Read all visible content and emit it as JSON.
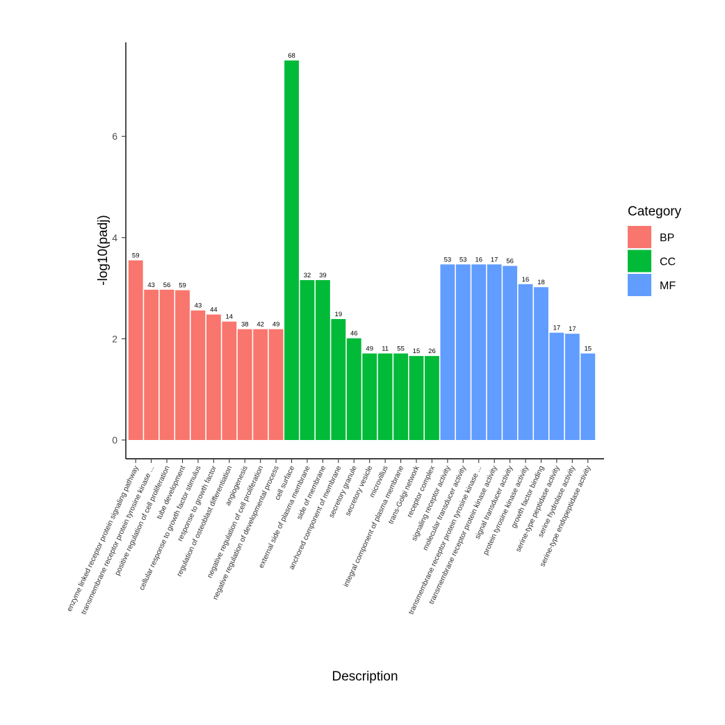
{
  "chart_data": {
    "type": "bar",
    "xlabel": "Description",
    "ylabel": "-log10(padj)",
    "ylim": [
      -0.33,
      7.75
    ],
    "yticks": [
      0,
      2,
      4,
      6
    ],
    "grid": false,
    "legend": {
      "title": "Category",
      "placement": "right",
      "entries": [
        {
          "name": "BP",
          "color": "#F8766D"
        },
        {
          "name": "CC",
          "color": "#00BA38"
        },
        {
          "name": "MF",
          "color": "#619CFF"
        }
      ]
    },
    "categories": [
      "enzyme linked receptor protein signaling pathway",
      "transmembrane receptor protein tyrosine kinase ...",
      "positive regulation of cell proliferation",
      "tube development",
      "cellular response to growth factor stimulus",
      "response to growth factor",
      "regulation of osteoblast differentiation",
      "angiogenesis",
      "negative regulation of cell proliferation",
      "negative regulation of developmental process",
      "cell surface",
      "external side of plasma membrane",
      "side of membrane",
      "anchored component of membrane",
      "secretory granule",
      "secretory vesicle",
      "microvillus",
      "integral component of plasma membrane",
      "trans-Golgi network",
      "receptor complex",
      "signaling receptor activity",
      "molecular transducer activity",
      "transmembrane receptor protein tyrosine kinase ...",
      "transmembrane receptor protein kinase activity",
      "signal transducer activity",
      "protein tyrosine kinase activity",
      "growth factor binding",
      "serine-type peptidase activity",
      "serine hydrolase activity",
      "serine-type endopeptidase activity"
    ],
    "groups": [
      "BP",
      "BP",
      "BP",
      "BP",
      "BP",
      "BP",
      "BP",
      "BP",
      "BP",
      "BP",
      "CC",
      "CC",
      "CC",
      "CC",
      "CC",
      "CC",
      "CC",
      "CC",
      "CC",
      "CC",
      "MF",
      "MF",
      "MF",
      "MF",
      "MF",
      "MF",
      "MF",
      "MF",
      "MF",
      "MF"
    ],
    "values": [
      3.55,
      2.97,
      2.97,
      2.96,
      2.56,
      2.48,
      2.34,
      2.19,
      2.19,
      2.19,
      7.5,
      3.16,
      3.16,
      2.39,
      2.01,
      1.71,
      1.71,
      1.71,
      1.66,
      1.66,
      3.47,
      3.47,
      3.47,
      3.47,
      3.44,
      3.08,
      3.02,
      2.12,
      2.1,
      1.71
    ],
    "counts": [
      "59",
      "43",
      "56",
      "59",
      "43",
      "44",
      "14",
      "38",
      "42",
      "49",
      "68",
      "32",
      "39",
      "19",
      "46",
      "49",
      "11",
      "55",
      "15",
      "26",
      "53",
      "53",
      "16",
      "17",
      "56",
      "16",
      "18",
      "17",
      "17",
      "15"
    ]
  }
}
